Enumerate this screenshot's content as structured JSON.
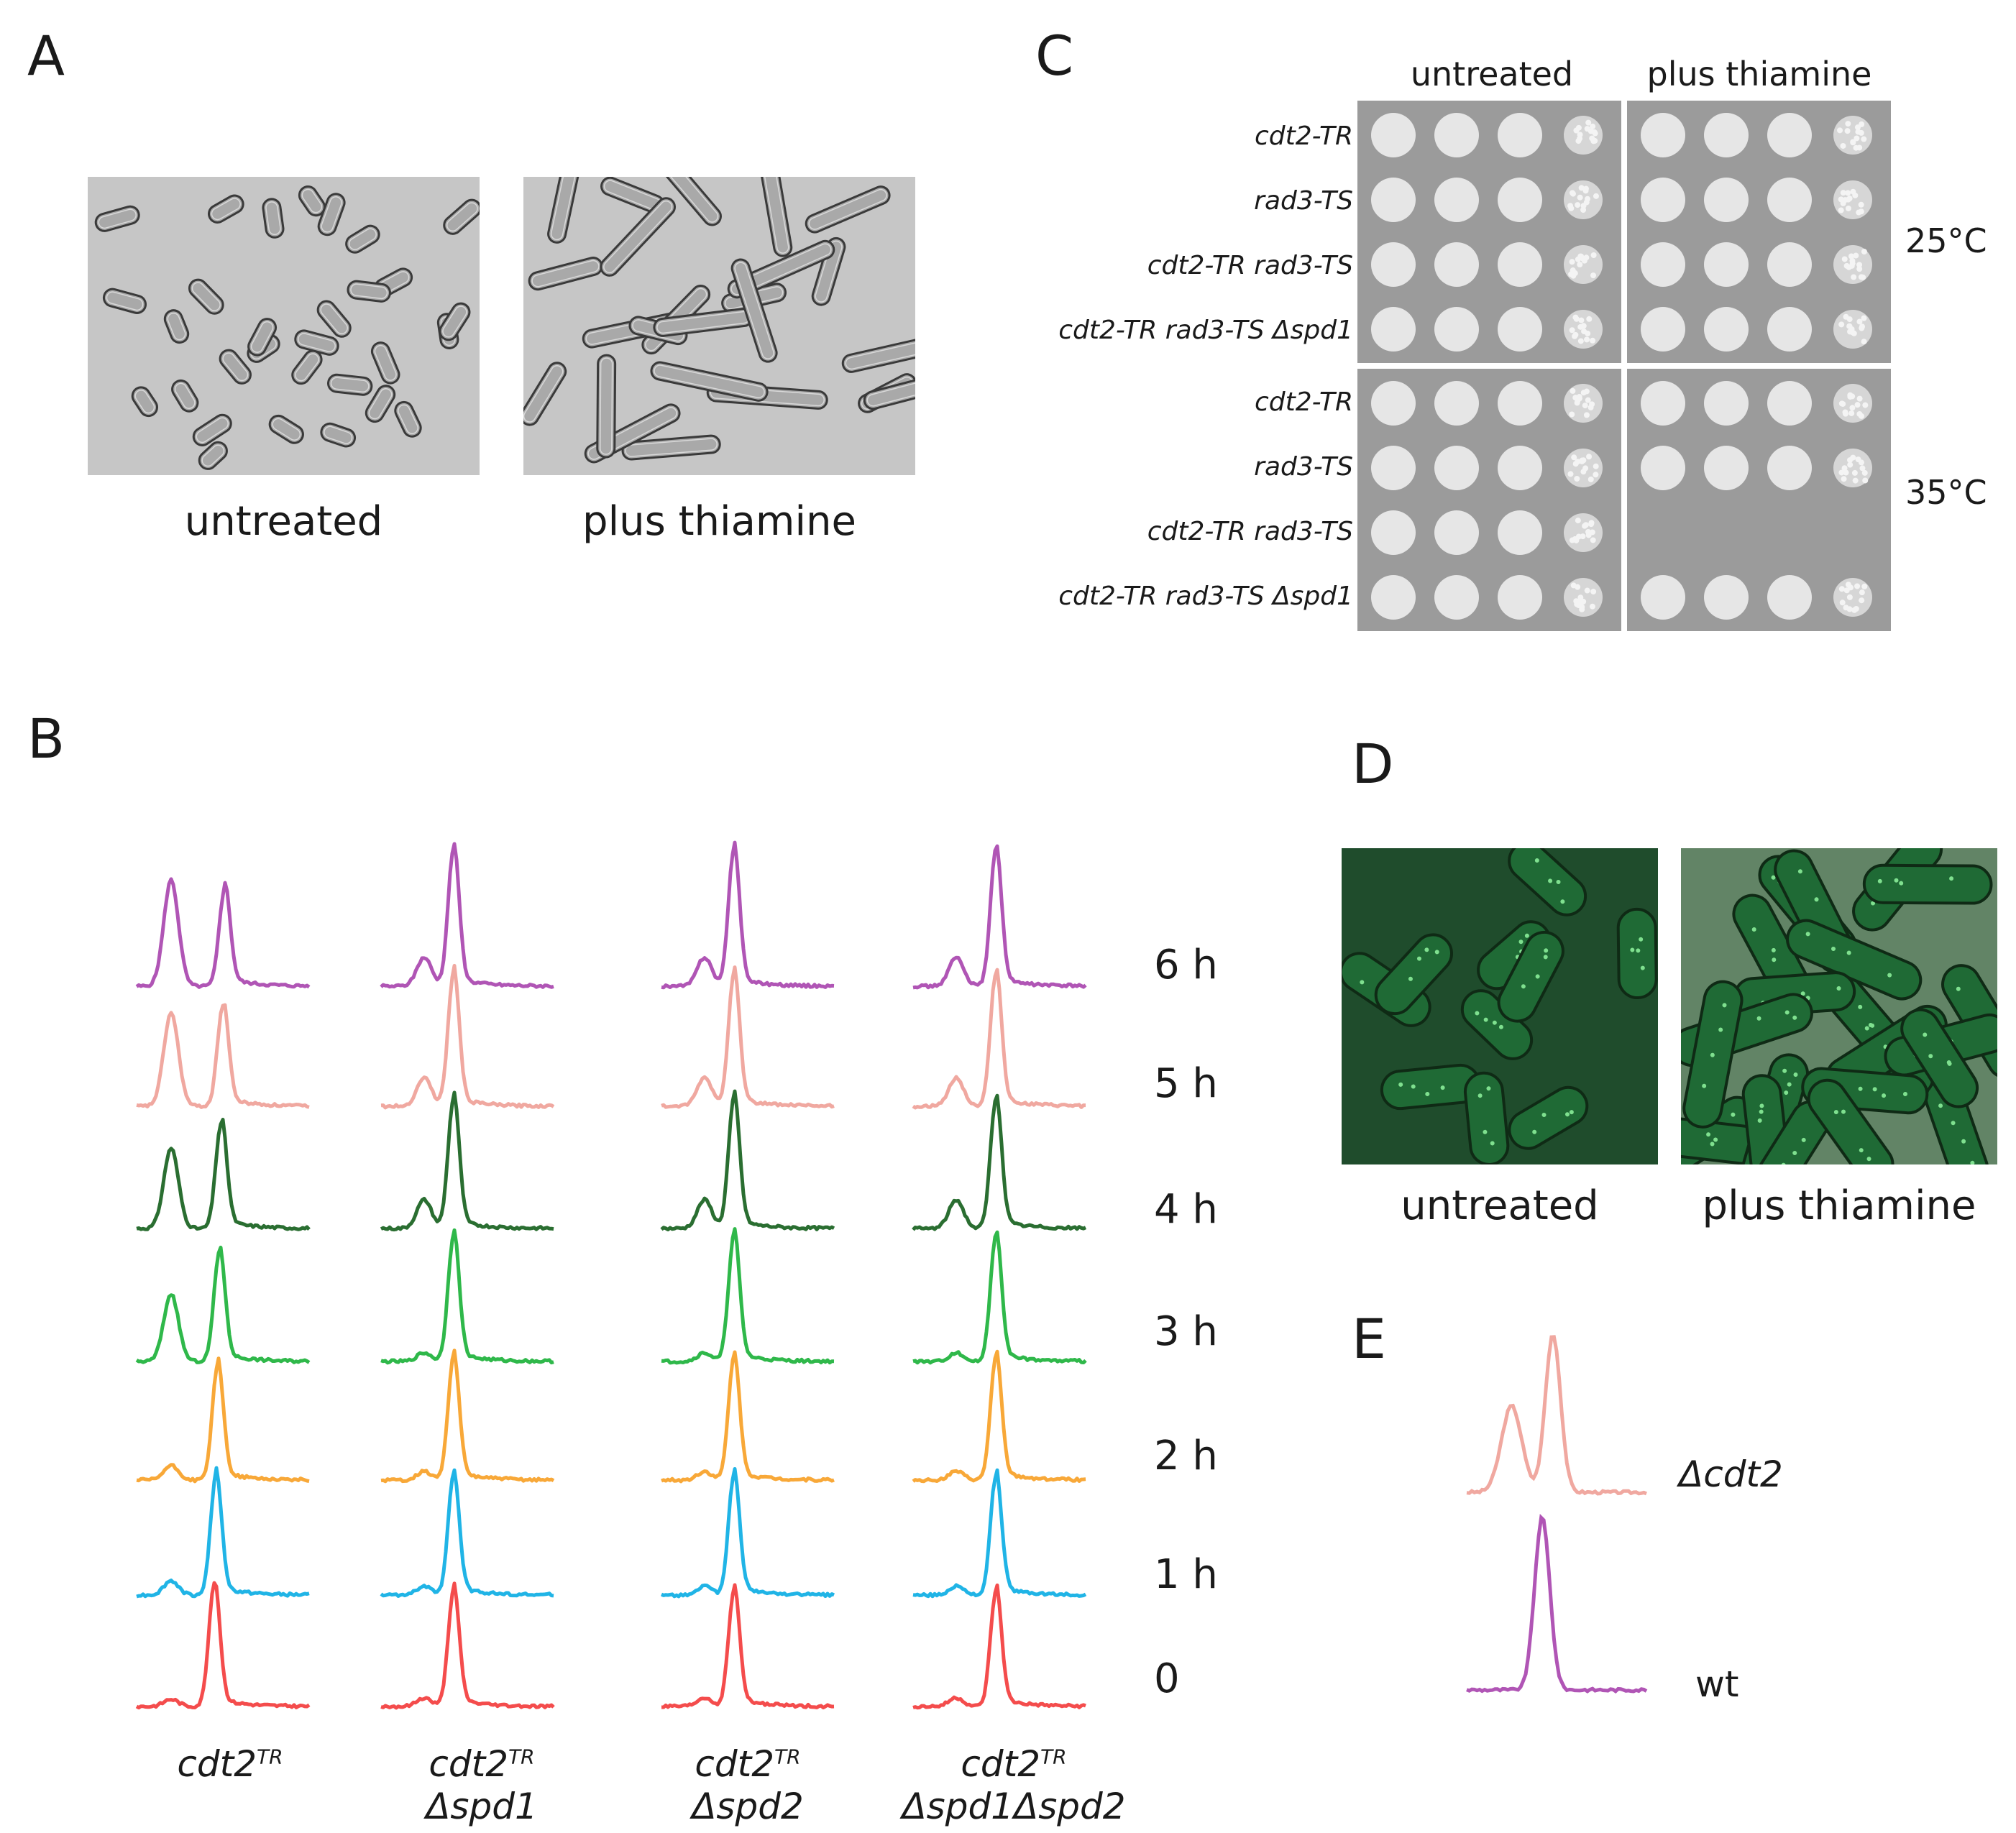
{
  "panels": {
    "A": {
      "letter": "A",
      "images": [
        {
          "caption": "untreated"
        },
        {
          "caption": "plus thiamine"
        }
      ]
    },
    "B": {
      "letter": "B",
      "time_labels": [
        "6 h",
        "5 h",
        "4 h",
        "3 h",
        "2 h",
        "1 h",
        "0"
      ],
      "trace_colors": [
        "#b055b5",
        "#f0a8a0",
        "#2a6e31",
        "#2fb84a",
        "#f8a838",
        "#20b4e6",
        "#f44c4c"
      ],
      "strains": [
        {
          "name": "cdt2",
          "sup": "TR",
          "line2": ""
        },
        {
          "name": "cdt2",
          "sup": "TR",
          "line2": "Δspd1"
        },
        {
          "name": "cdt2",
          "sup": "TR",
          "line2": "Δspd2"
        },
        {
          "name": "cdt2",
          "sup": "TR",
          "line2": "Δspd1Δspd2"
        }
      ]
    },
    "C": {
      "letter": "C",
      "columns": [
        "untreated",
        "plus thiamine"
      ],
      "strains": [
        "cdt2-TR",
        "rad3-TS",
        "cdt2-TR rad3-TS",
        "cdt2-TR rad3-TS Δspd1"
      ],
      "temperatures": [
        "25°C",
        "35°C"
      ]
    },
    "D": {
      "letter": "D",
      "images": [
        {
          "caption": "untreated"
        },
        {
          "caption": "plus thiamine"
        }
      ]
    },
    "E": {
      "letter": "E",
      "traces": [
        {
          "label": "Δcdt2",
          "color": "#f0a8a0"
        },
        {
          "label": "wt",
          "color": "#b055b5"
        }
      ]
    }
  }
}
